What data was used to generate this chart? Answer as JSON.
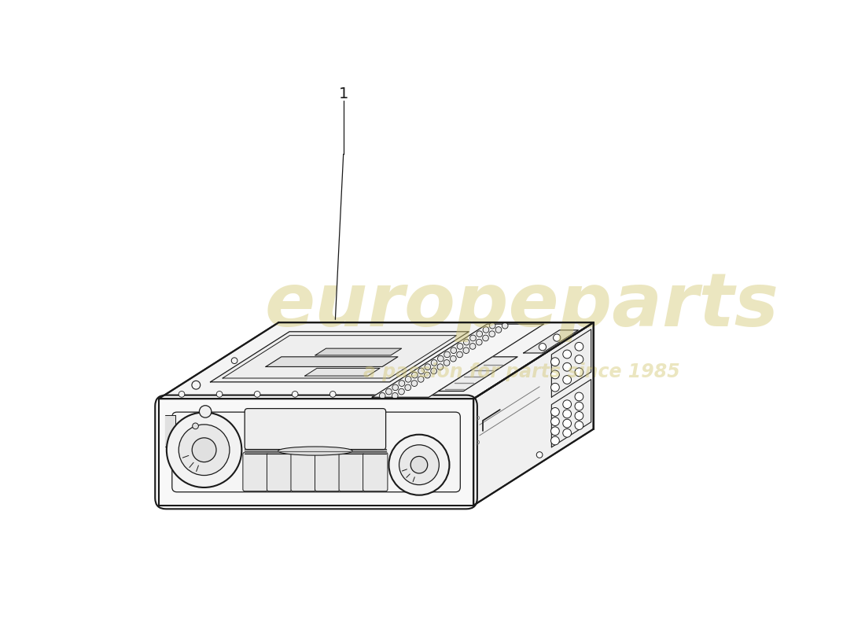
{
  "background_color": "#ffffff",
  "line_color": "#1a1a1a",
  "watermark_text1": "europeparts",
  "watermark_text2": "a passion for parts since 1985",
  "watermark_color": "#d4c875",
  "watermark_alpha": 0.45,
  "part_number": "1",
  "figsize": [
    11.0,
    8.0
  ],
  "dpi": 100
}
